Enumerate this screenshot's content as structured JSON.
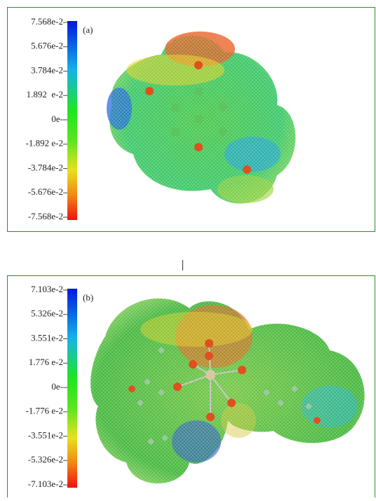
{
  "panels": [
    {
      "label": "(a)",
      "scale_labels": [
        "7.568e-2",
        "5.676e-2",
        "3.784e-2",
        "1.892  e-2",
        "0e-",
        "-1.892 e-2",
        "-3.784e-2",
        "-5.676e-2",
        "-7.568e-2"
      ]
    },
    {
      "label": "(b)",
      "scale_labels": [
        "7.103e-2",
        "5.326e-2",
        "3.551e-2",
        "1.776 e-2",
        "0e-",
        "-1.776 e-2",
        "-3.551e-2",
        "-5.326e-2",
        "-7.103e-2"
      ]
    }
  ]
}
